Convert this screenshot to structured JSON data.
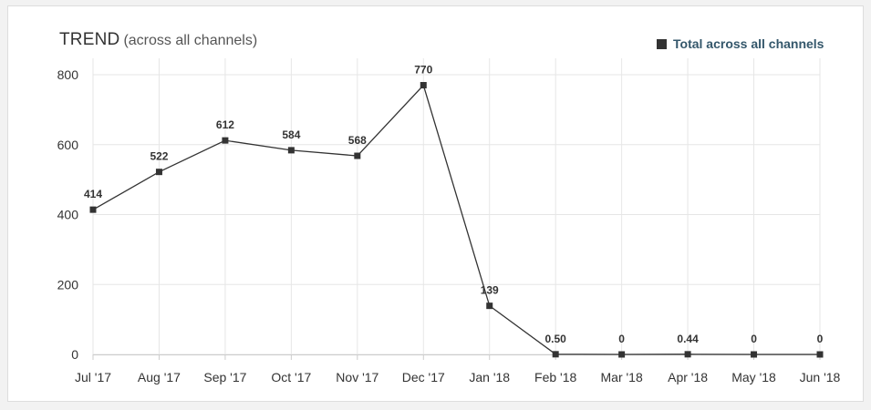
{
  "header": {
    "title": "TREND",
    "subtitle": "(across all channels)"
  },
  "legend": {
    "label": "Total across all channels",
    "color": "#333333"
  },
  "chart_data": {
    "type": "line",
    "title": "TREND (across all channels)",
    "xlabel": "",
    "ylabel": "",
    "categories": [
      "Jul '17",
      "Aug '17",
      "Sep '17",
      "Oct '17",
      "Nov '17",
      "Dec '17",
      "Jan '18",
      "Feb '18",
      "Mar '18",
      "Apr '18",
      "May '18",
      "Jun '18"
    ],
    "series": [
      {
        "name": "Total across all channels",
        "values": [
          414,
          522,
          612,
          584,
          568,
          770,
          139,
          0.5,
          0,
          0.44,
          0,
          0
        ],
        "labels": [
          "414",
          "522",
          "612",
          "584",
          "568",
          "770",
          "139",
          "0.50",
          "0",
          "0.44",
          "0",
          "0"
        ]
      }
    ],
    "ylim": [
      0,
      800
    ],
    "yticks": [
      0,
      200,
      400,
      600,
      800
    ],
    "grid": true,
    "legend_position": "top-right",
    "line_color": "#333333",
    "grid_color": "#e6e6e6"
  }
}
